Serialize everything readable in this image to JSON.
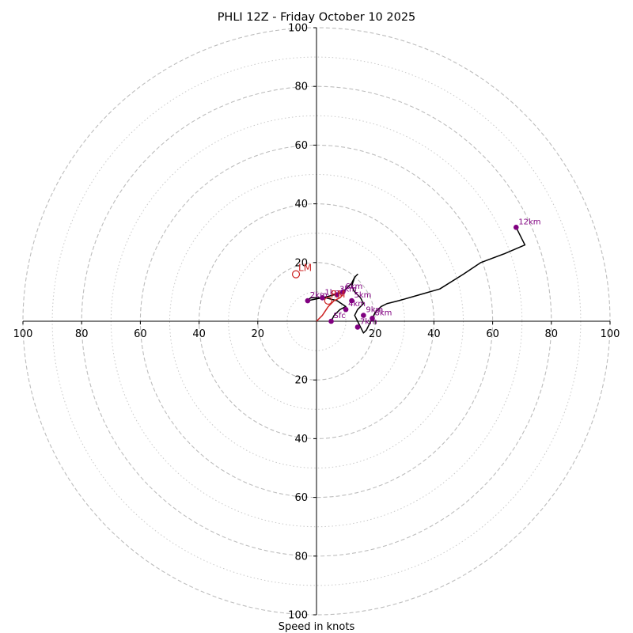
{
  "chart_data": {
    "type": "line",
    "title": "PHLI 12Z - Friday October 10 2025",
    "xlabel": "Speed in knots",
    "ylabel": "",
    "xlim": [
      -100,
      100
    ],
    "ylim": [
      -100,
      100
    ],
    "rings_dashed": [
      20,
      40,
      60,
      80,
      100
    ],
    "rings_dotted": [
      10,
      30,
      50,
      70,
      90
    ],
    "x_tick_labels": [
      "100",
      "80",
      "60",
      "40",
      "20",
      "20",
      "40",
      "60",
      "80",
      "100"
    ],
    "x_tick_values": [
      -100,
      -80,
      -60,
      -40,
      -20,
      20,
      40,
      60,
      80,
      100
    ],
    "y_tick_labels": [
      "100",
      "80",
      "60",
      "40",
      "20",
      "20",
      "40",
      "60",
      "80",
      "100"
    ],
    "y_tick_values": [
      100,
      80,
      60,
      40,
      20,
      -20,
      -40,
      -60,
      -80,
      -100
    ],
    "series": [
      {
        "color": "#000000",
        "x": [
          5,
          6,
          8,
          10,
          7,
          3,
          -2,
          -3,
          2,
          6,
          9,
          10,
          11,
          12,
          13,
          14,
          13,
          12,
          13,
          15,
          16,
          14,
          13,
          14,
          15,
          16,
          17,
          18,
          19,
          20,
          22,
          24,
          28,
          35,
          42,
          50,
          56,
          64,
          71,
          68
        ],
        "y": [
          0,
          2,
          4,
          5,
          7,
          8,
          8,
          7,
          8,
          9,
          10,
          11,
          12,
          13,
          15,
          16,
          15,
          12,
          10,
          8,
          6,
          4,
          2,
          0,
          -2,
          -4,
          -3,
          -1,
          1,
          3,
          5,
          6,
          7,
          9,
          11,
          16,
          20,
          23,
          26,
          32
        ]
      },
      {
        "color": "#cc2222",
        "x": [
          0,
          2,
          4,
          6,
          8,
          9
        ],
        "y": [
          0,
          2,
          5,
          7,
          8,
          9
        ]
      }
    ],
    "points": [
      {
        "label": "Sfc",
        "x": 5,
        "y": 0
      },
      {
        "label": "1km",
        "x": 2,
        "y": 8
      },
      {
        "label": "2km",
        "x": -3,
        "y": 7
      },
      {
        "label": "3km",
        "x": 7,
        "y": 9
      },
      {
        "label": "4km",
        "x": 10,
        "y": 4
      },
      {
        "label": "5km",
        "x": 12,
        "y": 7
      },
      {
        "label": "6km",
        "x": 9,
        "y": 10
      },
      {
        "label": "7km",
        "x": 14,
        "y": -2
      },
      {
        "label": "8km",
        "x": 19,
        "y": 1
      },
      {
        "label": "9km",
        "x": 16,
        "y": 2
      },
      {
        "label": "12km",
        "x": 68,
        "y": 32
      }
    ],
    "point_color": "#800080",
    "storm_motion": [
      {
        "label": "LM",
        "x": -7,
        "y": 16,
        "color": "#cc2222"
      },
      {
        "label": "RM",
        "x": 4,
        "y": 7,
        "color": "#cc2222"
      }
    ]
  }
}
